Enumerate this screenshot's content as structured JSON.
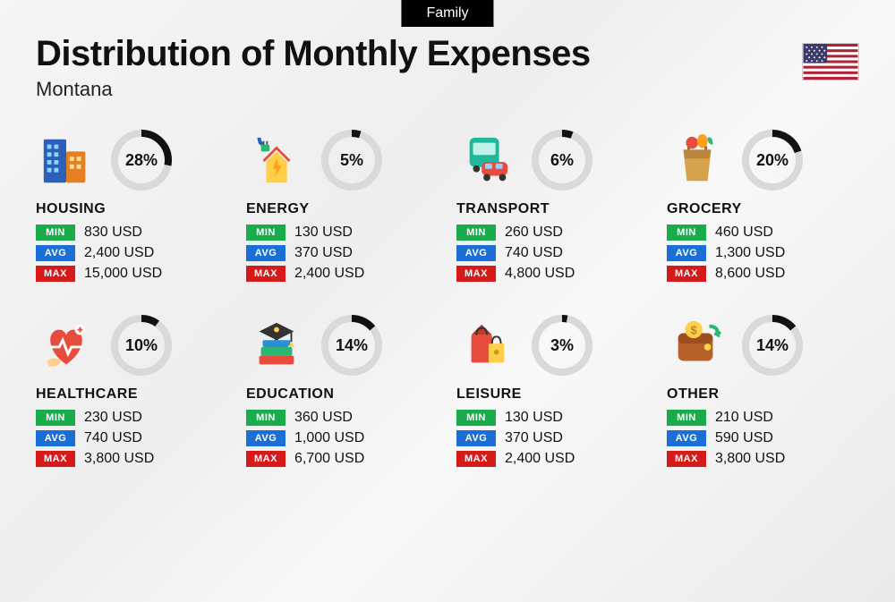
{
  "badge": "Family",
  "title": "Distribution of Monthly Expenses",
  "subtitle": "Montana",
  "currency": "USD",
  "labels": {
    "min": "MIN",
    "avg": "AVG",
    "max": "MAX"
  },
  "colors": {
    "min": "#1aab4a",
    "avg": "#1a6fd6",
    "max": "#d61a1a",
    "ring_track": "#d9d9d9",
    "ring_fill": "#111111",
    "text": "#111111",
    "badge_bg": "#000000"
  },
  "ring": {
    "size": 72,
    "stroke_width": 8,
    "radius": 30,
    "circumference": 188.5,
    "font_size": 18
  },
  "categories": [
    {
      "key": "housing",
      "name": "HOUSING",
      "pct": 28,
      "min": "830",
      "avg": "2,400",
      "max": "15,000",
      "icon": "building"
    },
    {
      "key": "energy",
      "name": "ENERGY",
      "pct": 5,
      "min": "130",
      "avg": "370",
      "max": "2,400",
      "icon": "energy"
    },
    {
      "key": "transport",
      "name": "TRANSPORT",
      "pct": 6,
      "min": "260",
      "avg": "740",
      "max": "4,800",
      "icon": "transport"
    },
    {
      "key": "grocery",
      "name": "GROCERY",
      "pct": 20,
      "min": "460",
      "avg": "1,300",
      "max": "8,600",
      "icon": "grocery"
    },
    {
      "key": "healthcare",
      "name": "HEALTHCARE",
      "pct": 10,
      "min": "230",
      "avg": "740",
      "max": "3,800",
      "icon": "healthcare"
    },
    {
      "key": "education",
      "name": "EDUCATION",
      "pct": 14,
      "min": "360",
      "avg": "1,000",
      "max": "6,700",
      "icon": "education"
    },
    {
      "key": "leisure",
      "name": "LEISURE",
      "pct": 3,
      "min": "130",
      "avg": "370",
      "max": "2,400",
      "icon": "leisure"
    },
    {
      "key": "other",
      "name": "OTHER",
      "pct": 14,
      "min": "210",
      "avg": "590",
      "max": "3,800",
      "icon": "other"
    }
  ]
}
